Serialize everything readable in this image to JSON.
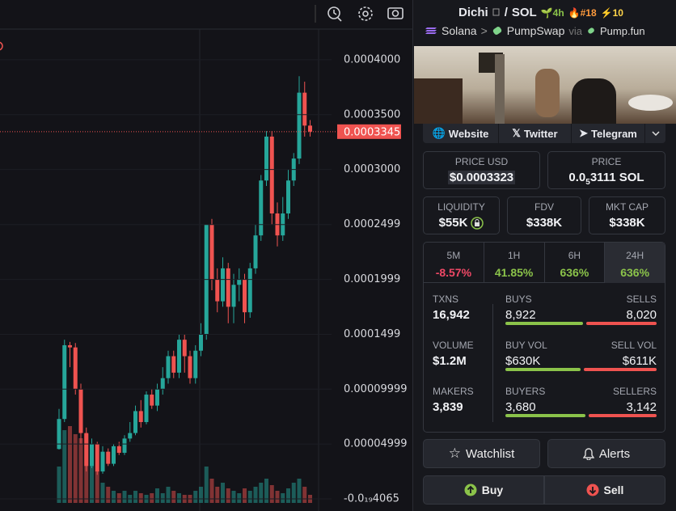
{
  "chart": {
    "type": "candlestick",
    "ylim": [
      -1.1e-05,
      0.0004544
    ],
    "yticks": [
      {
        "value": 0.0004,
        "label": "0.0004000"
      },
      {
        "value": 0.00035,
        "label": "0.0003500"
      },
      {
        "value": 0.0003,
        "label": "0.0003000"
      },
      0.0002499,
      0.0001999,
      0.0001499,
      9.999e-05,
      4.999e-05,
      {
        "value": -4.065e-24,
        "label": "-0.0₁₉4065"
      }
    ],
    "last_price": 0.0003345,
    "up_color": "#26a69a",
    "down_color": "#ef5350",
    "candles": [
      [
        4.55e-05,
        8.2e-05,
        4.5e-05,
        7.28e-05
      ],
      [
        7.28e-05,
        0.000145,
        7e-05,
        0.00014
      ],
      [
        0.00014,
        0.000143,
        0.00012,
        0.000138
      ],
      [
        0.000138,
        0.000142,
        9.5e-05,
        0.0001
      ],
      [
        0.0001,
        0.000105,
        5e-05,
        6e-05
      ],
      [
        6e-05,
        6.5e-05,
        2.5e-05,
        3e-05
      ],
      [
        3e-05,
        5.5e-05,
        2.8e-05,
        5e-05
      ],
      [
        5e-05,
        5.2e-05,
        2.2e-05,
        2.5e-05
      ],
      [
        2.5e-05,
        4.8e-05,
        2.3e-05,
        4.3e-05
      ],
      [
        4.3e-05,
        4.6e-05,
        3e-05,
        3.2e-05
      ],
      [
        3.2e-05,
        5e-05,
        3e-05,
        4.8e-05
      ],
      [
        4.8e-05,
        5.2e-05,
        4e-05,
        4.2e-05
      ],
      [
        4.2e-05,
        5.8e-05,
        4e-05,
        5.5e-05
      ],
      [
        5.5e-05,
        7e-05,
        5.2e-05,
        6e-05
      ],
      [
        6e-05,
        8.5e-05,
        5.8e-05,
        8e-05
      ],
      [
        8e-05,
        9e-05,
        6.5e-05,
        7e-05
      ],
      [
        7e-05,
        9.8e-05,
        6.8e-05,
        9.5e-05
      ],
      [
        9.5e-05,
        0.0001,
        8.2e-05,
        8.5e-05
      ],
      [
        8.5e-05,
        0.000105,
        8e-05,
        0.0001
      ],
      [
        0.0001,
        0.00012,
        9.5e-05,
        0.00011
      ],
      [
        0.00011,
        0.000135,
        0.000105,
        0.00013
      ],
      [
        0.00013,
        0.000135,
        0.00011,
        0.000115
      ],
      [
        0.000115,
        0.00015,
        0.00011,
        0.000145
      ],
      [
        0.000145,
        0.00015,
        0.000115,
        0.00013
      ],
      [
        0.00013,
        0.000135,
        0.000105,
        0.00011
      ],
      [
        0.00011,
        0.00014,
        0.000105,
        0.000135
      ],
      [
        0.000135,
        0.00016,
        0.00013,
        0.00015
      ],
      [
        0.00015,
        0.00025,
        0.000145,
        0.00025
      ],
      [
        0.00025,
        0.000255,
        0.00019,
        0.0002
      ],
      [
        0.0002,
        0.00021,
        0.00017,
        0.00018
      ],
      [
        0.00018,
        0.00022,
        0.000175,
        0.00021
      ],
      [
        0.00021,
        0.000215,
        0.00016,
        0.000175
      ],
      [
        0.000175,
        0.000205,
        0.00016,
        0.000195
      ],
      [
        0.000195,
        0.00021,
        0.00018,
        0.0002
      ],
      [
        0.0002,
        0.000205,
        0.00016,
        0.00017
      ],
      [
        0.00017,
        0.000215,
        0.000165,
        0.00021
      ],
      [
        0.00021,
        0.00025,
        0.000205,
        0.00024
      ],
      [
        0.00024,
        0.000295,
        0.000235,
        0.00029
      ],
      [
        0.00029,
        0.000335,
        0.000285,
        0.00033
      ],
      [
        0.00033,
        0.000335,
        0.00025,
        0.00026
      ],
      [
        0.00026,
        0.00027,
        0.00023,
        0.00024
      ],
      [
        0.00024,
        0.000275,
        0.000235,
        0.00026
      ],
      [
        0.00026,
        0.0003,
        0.000255,
        0.00029
      ],
      [
        0.00029,
        0.000315,
        0.000285,
        0.00031
      ],
      [
        0.00031,
        0.000385,
        0.000305,
        0.00037
      ],
      [
        0.00037,
        0.00038,
        0.00033,
        0.00034
      ],
      [
        0.00034,
        0.000345,
        0.00033,
        0.0003345
      ]
    ],
    "volumes": [
      45,
      90,
      95,
      85,
      80,
      85,
      60,
      40,
      25,
      20,
      15,
      12,
      15,
      10,
      15,
      12,
      10,
      12,
      18,
      12,
      20,
      15,
      12,
      10,
      10,
      15,
      20,
      45,
      30,
      20,
      25,
      18,
      15,
      12,
      18,
      15,
      20,
      25,
      30,
      22,
      15,
      12,
      18,
      25,
      30,
      20,
      10
    ]
  },
  "header": {
    "token": "Dichi",
    "separator": "/",
    "quote": "SOL",
    "age": "4h",
    "rank": "#18",
    "boosts": "10"
  },
  "route": {
    "chain": "Solana",
    "arrow": ">",
    "dex": "PumpSwap",
    "via": "via",
    "launchpad": "Pump.fun"
  },
  "links": [
    "Website",
    "Twitter",
    "Telegram"
  ],
  "price_usd": {
    "label": "PRICE USD",
    "value": "$0.0003323"
  },
  "price": {
    "label": "PRICE",
    "value_prefix": "0.0",
    "value_sub": "5",
    "value_rest": "3111 SOL"
  },
  "liquidity": {
    "label": "LIQUIDITY",
    "value": "$55K"
  },
  "fdv": {
    "label": "FDV",
    "value": "$338K"
  },
  "mkt_cap": {
    "label": "MKT CAP",
    "value": "$338K"
  },
  "timeframes": [
    {
      "label": "5M",
      "change": "-8.57%"
    },
    {
      "label": "1H",
      "change": "41.85%"
    },
    {
      "label": "6H",
      "change": "636%"
    },
    {
      "label": "24H",
      "change": "636%"
    }
  ],
  "stats": [
    {
      "label": "TXNS",
      "value": "16,942",
      "buy_label": "BUYS",
      "buy": "8,922",
      "sell_label": "SELLS",
      "sell": "8,020"
    },
    {
      "label": "VOLUME",
      "value": "$1.2M",
      "buy_label": "BUY VOL",
      "buy": "$630K",
      "sell_label": "SELL VOL",
      "sell": "$611K"
    },
    {
      "label": "MAKERS",
      "value": "3,839",
      "buy_label": "BUYERS",
      "buy": "3,680",
      "sell_label": "SELLERS",
      "sell": "3,142"
    }
  ],
  "actions": {
    "watchlist": "Watchlist",
    "alerts": "Alerts",
    "buy": "Buy",
    "sell": "Sell"
  }
}
